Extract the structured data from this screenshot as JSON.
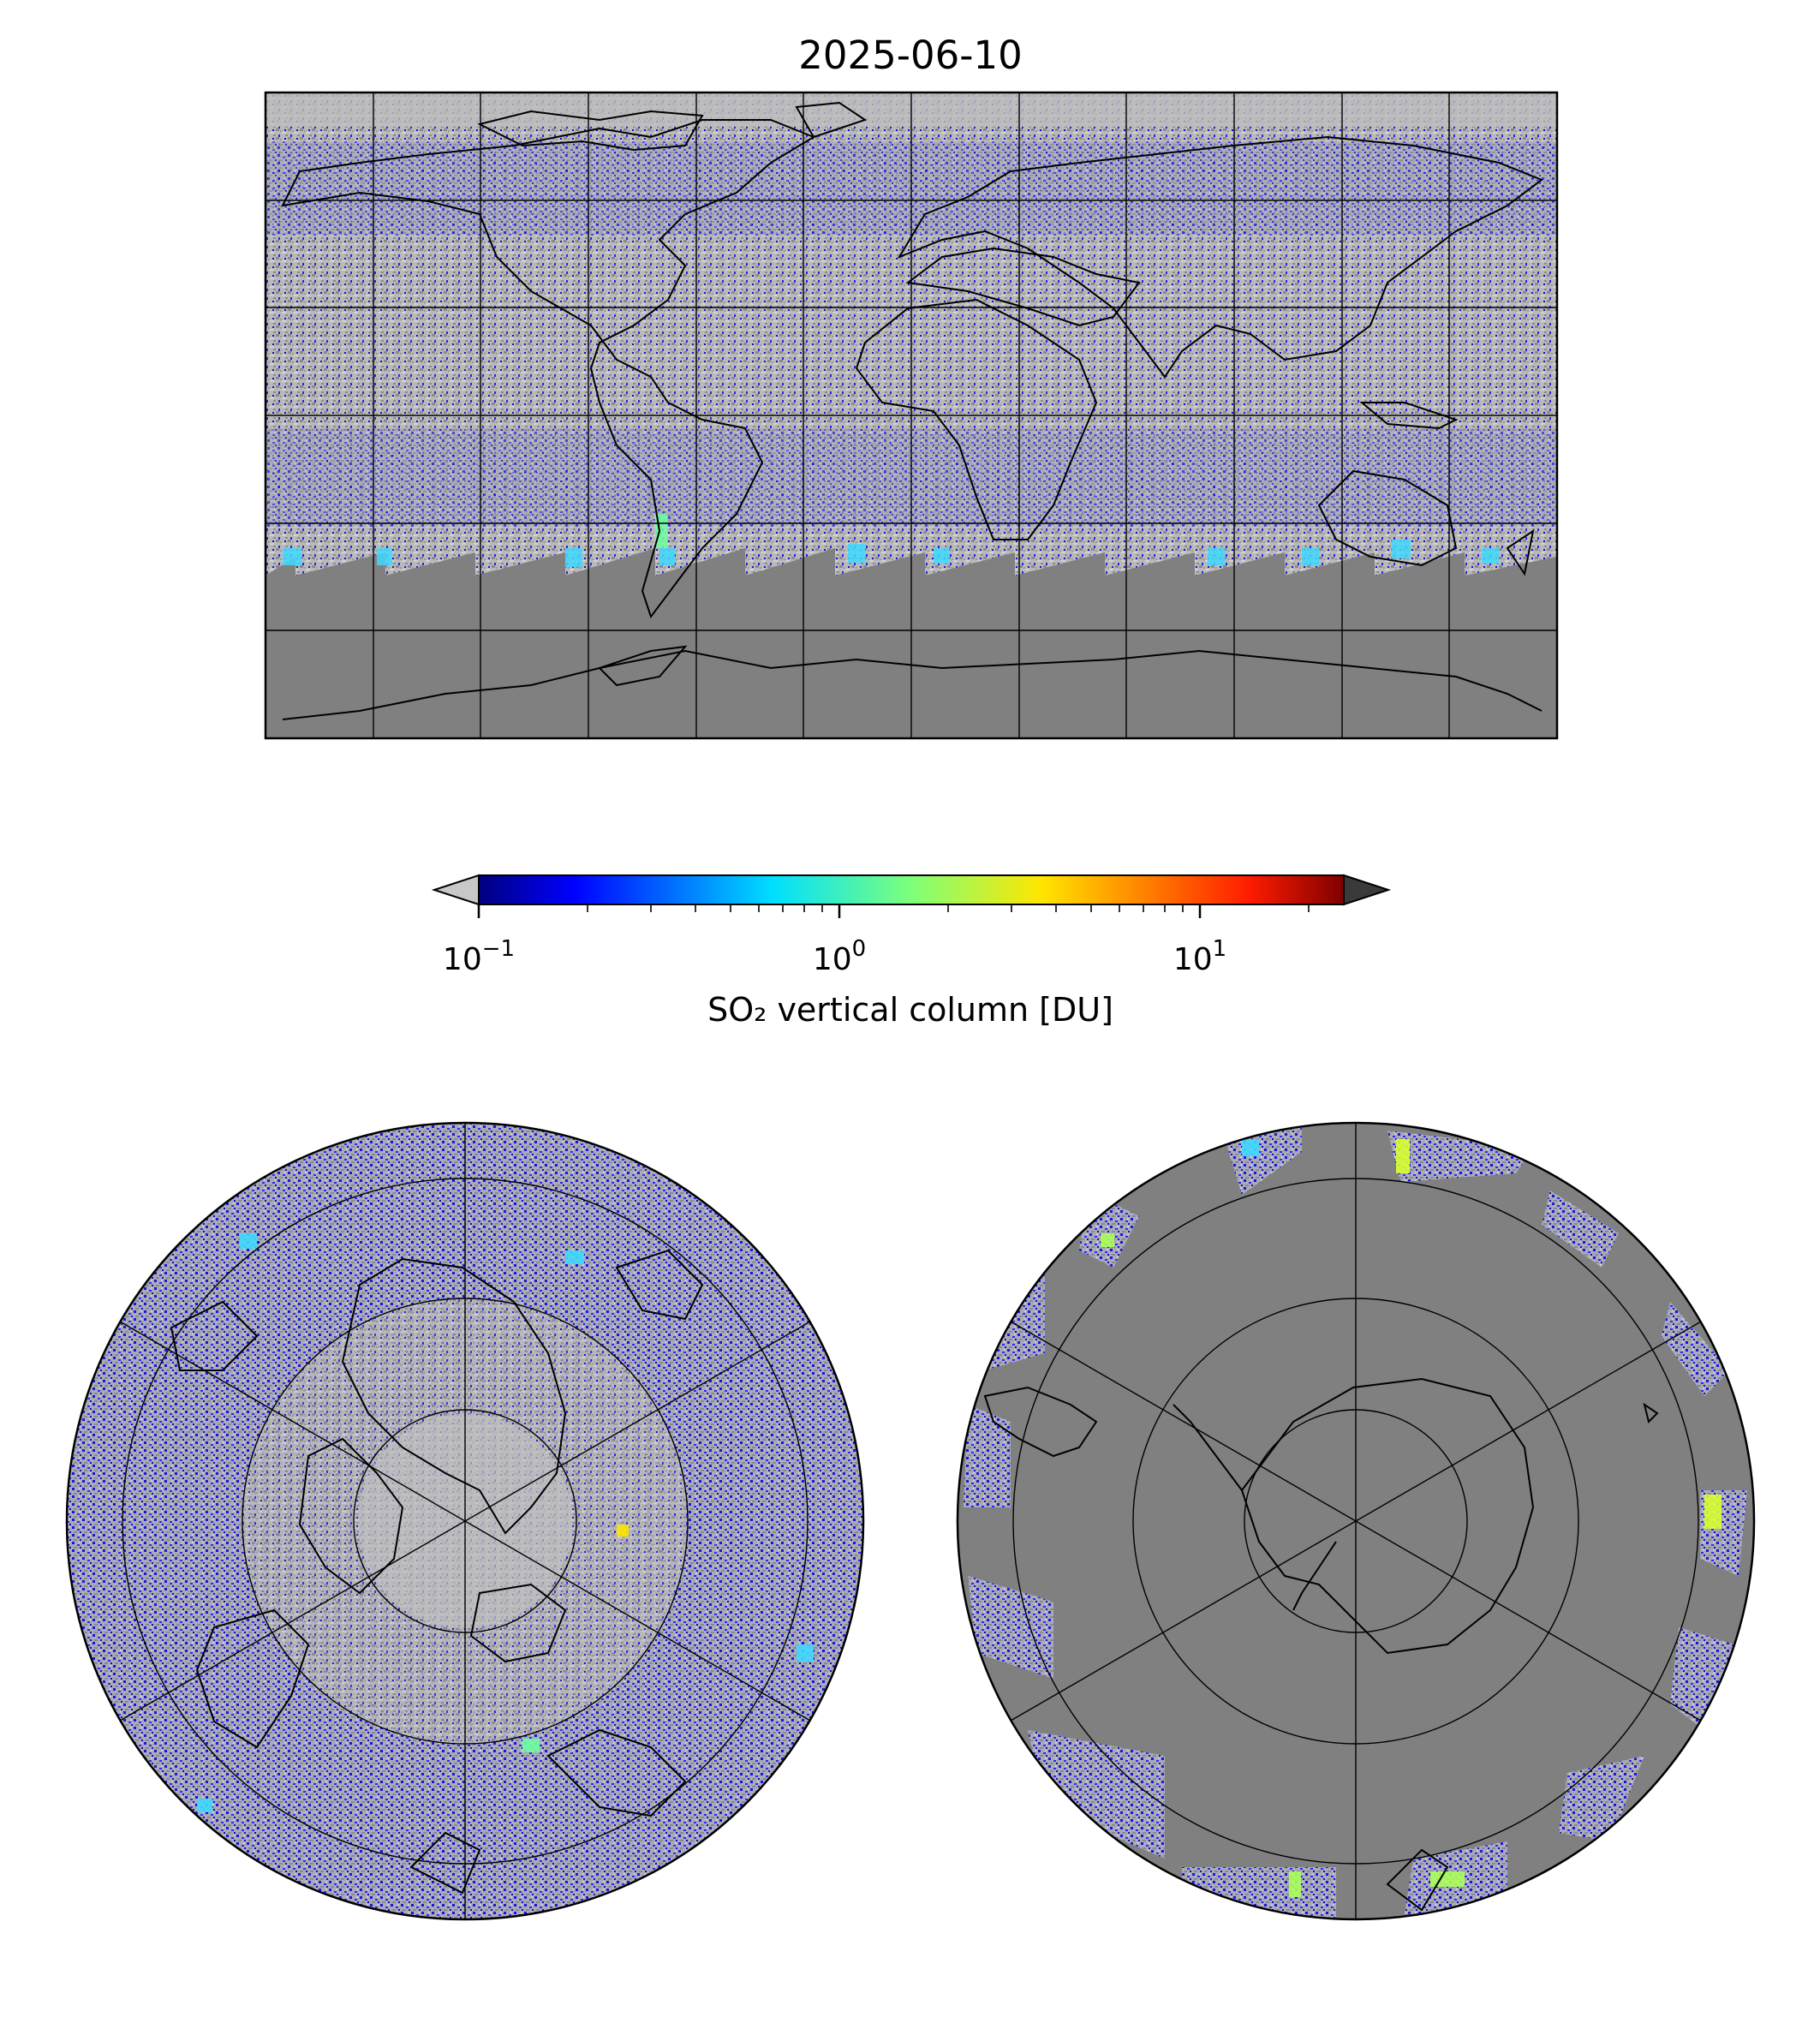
{
  "title": "2025-06-10",
  "colorbar": {
    "label": "SO₂ vertical column [DU]",
    "scale": "log",
    "range": [
      0.1,
      25
    ],
    "ticks": [
      {
        "value": 0.1,
        "base": "10",
        "exp": "−1"
      },
      {
        "value": 1,
        "base": "10",
        "exp": "0"
      },
      {
        "value": 10,
        "base": "10",
        "exp": "1"
      }
    ],
    "colormap": "jet",
    "under_color": "#c8c8c8",
    "over_color": "#3a3a3a"
  },
  "maps": {
    "global": {
      "projection": "plate-carree",
      "gridline_lon_step": 30,
      "gridline_lat_step": 30,
      "no_data_color": "#808080",
      "land_color": "#bdbdbd"
    },
    "north_polar": {
      "projection": "north-polar-stereographic"
    },
    "south_polar": {
      "projection": "south-polar-stereographic"
    }
  }
}
